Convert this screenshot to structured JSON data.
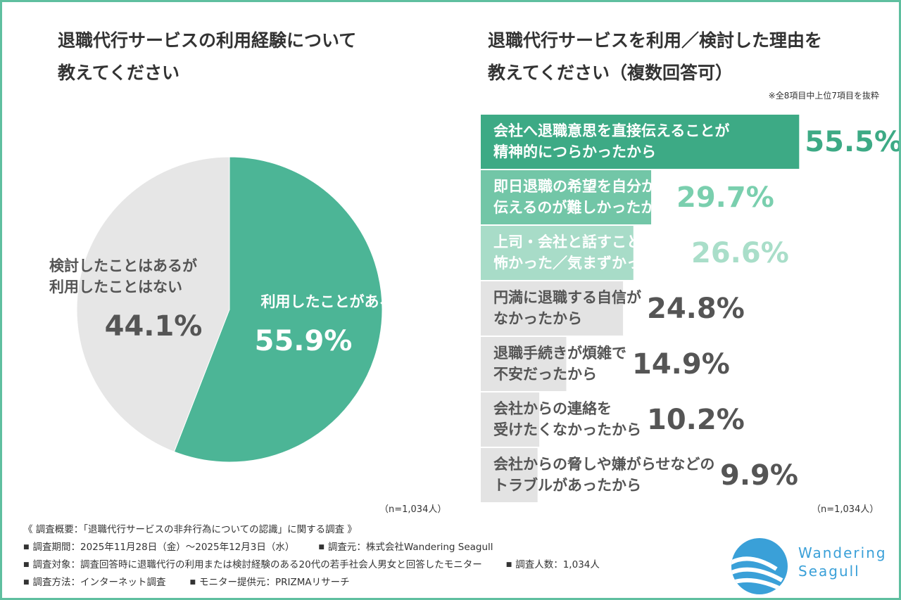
{
  "chart_data": [
    {
      "type": "pie",
      "title": [
        "退職代行サービスの利用経験について",
        "教えてください"
      ],
      "categories": [
        "利用したことがある",
        "検討したことはあるが\n利用したことはない"
      ],
      "values": [
        55.9,
        44.1
      ],
      "value_labels": [
        "55.9%",
        "44.1%"
      ],
      "colors": [
        "#4cb596",
        "#e6e6e6"
      ],
      "label_colors": [
        "#ffffff",
        "#555555"
      ],
      "note": "（n=1,034人）"
    },
    {
      "type": "bar",
      "orientation": "horizontal",
      "title": [
        "退職代行サービスを利用／検討した理由を",
        "教えてください（複数回答可）"
      ],
      "subtitle": "※全8項目中上位7項目を抜粋",
      "categories": [
        "会社へ退職意思を直接伝えることが\n精神的につらかったから",
        "即日退職の希望を自分から\n伝えるのが難しかったから",
        "上司・会社と話すこと自体が\n怖かった／気まずかったから",
        "円満に退職する自信が\nなかったから",
        "退職手続きが煩雑で\n不安だったから",
        "会社からの連絡を\n受けたくなかったから",
        "会社からの脅しや嫌がらせなどの\nトラブルがあったから"
      ],
      "values": [
        55.5,
        29.7,
        26.6,
        24.8,
        14.9,
        10.2,
        9.9
      ],
      "value_labels": [
        "55.5%",
        "29.7%",
        "26.6%",
        "24.8%",
        "14.9%",
        "10.2%",
        "9.9%"
      ],
      "colors": [
        "#3daa85",
        "#72c6a7",
        "#a8dcc8",
        "#e3e3e3",
        "#e3e3e3",
        "#e3e3e3",
        "#e3e3e3"
      ],
      "label_colors": [
        "#ffffff",
        "#ffffff",
        "#ffffff",
        "#555555",
        "#555555",
        "#555555",
        "#555555"
      ],
      "value_label_colors": [
        "#3daa85",
        "#7acfae",
        "#a9dec9",
        "#555555",
        "#555555",
        "#555555",
        "#555555"
      ],
      "note": "（n=1,034人）"
    }
  ],
  "footer": {
    "heading": "《 調査概要：「退職代行サービスの非弁行為についての認識」に関する調査 》",
    "items": [
      [
        "調査期間：2025年11月28日（金）～2025年12月3日（水）",
        "調査元：株式会社Wandering Seagull"
      ],
      [
        "調査対象：調査回答時に退職代行の利用または検討経験のある20代の若手社会人男女と回答したモニター",
        "調査人数：1,034人"
      ],
      [
        "調査方法：インターネット調査",
        "モニター提供元：PRIZMAリサーチ"
      ]
    ]
  },
  "logo": {
    "text": "Wandering\nSeagull"
  }
}
